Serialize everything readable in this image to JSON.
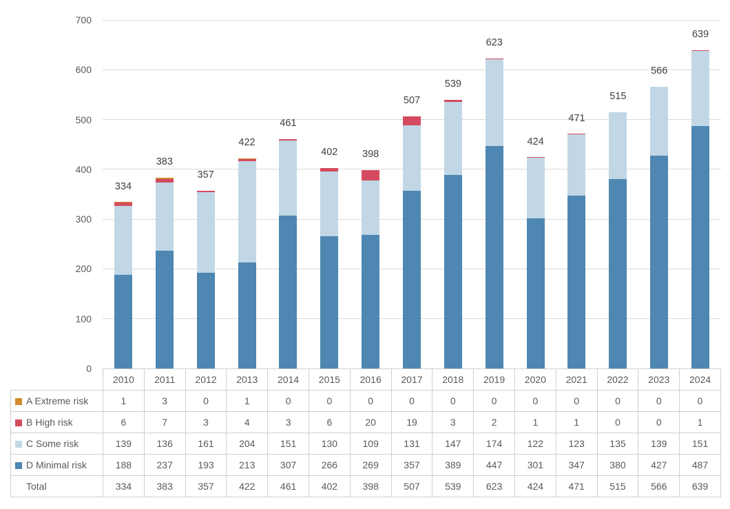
{
  "chart_data": {
    "type": "bar",
    "stacked": true,
    "title": "",
    "xlabel": "",
    "ylabel": "",
    "categories": [
      "2010",
      "2011",
      "2012",
      "2013",
      "2014",
      "2015",
      "2016",
      "2017",
      "2018",
      "2019",
      "2020",
      "2021",
      "2022",
      "2023",
      "2024"
    ],
    "series": [
      {
        "name": "A Extreme risk",
        "color": "#CF8B2D",
        "values": [
          1,
          3,
          0,
          1,
          0,
          0,
          0,
          0,
          0,
          0,
          0,
          0,
          0,
          0,
          0
        ]
      },
      {
        "name": "B High risk",
        "color": "#D54A5E",
        "values": [
          6,
          7,
          3,
          4,
          3,
          6,
          20,
          19,
          3,
          2,
          1,
          1,
          0,
          0,
          1
        ]
      },
      {
        "name": "C Some risk",
        "color": "#C1D7E5",
        "values": [
          139,
          136,
          161,
          204,
          151,
          130,
          109,
          131,
          147,
          174,
          122,
          123,
          135,
          139,
          151
        ]
      },
      {
        "name": "D Minimal risk",
        "color": "#4E87B1",
        "values": [
          188,
          237,
          193,
          213,
          307,
          266,
          269,
          357,
          389,
          447,
          301,
          347,
          380,
          427,
          487
        ]
      }
    ],
    "totals": [
      334,
      383,
      357,
      422,
      461,
      402,
      398,
      507,
      539,
      623,
      424,
      471,
      515,
      566,
      639
    ],
    "total_row_label": "Total",
    "ylim": [
      0,
      700
    ],
    "yticks": [
      0,
      100,
      200,
      300,
      400,
      500,
      600,
      700
    ],
    "grid": true,
    "legend_position": "table-row-headers",
    "colors": {
      "gridline": "#D9D9D9",
      "axis_text": "#595959",
      "data_label": "#404040",
      "table_border": "#D0CECE",
      "table_text": "#595959",
      "background": "#FFFFFF"
    }
  }
}
